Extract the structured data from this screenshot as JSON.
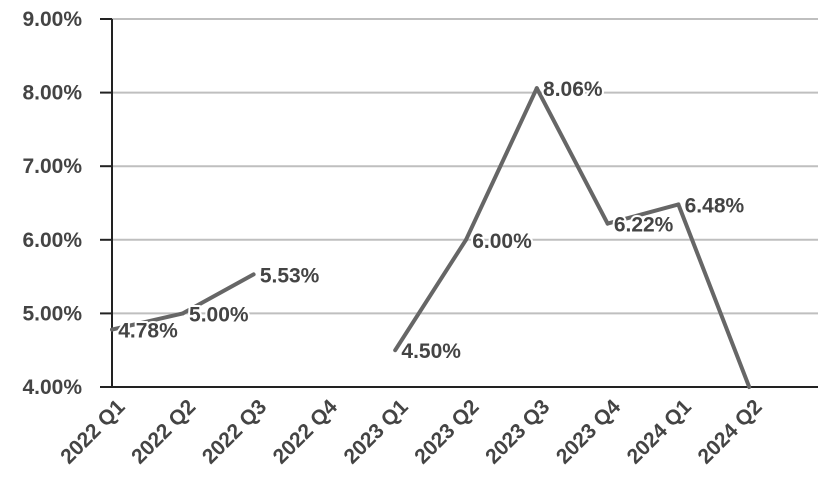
{
  "chart_data": {
    "type": "line",
    "title": "",
    "xlabel": "",
    "ylabel": "",
    "categories": [
      "2022 Q1",
      "2022 Q2",
      "2022 Q3",
      "2022 Q4",
      "2023 Q1",
      "2023 Q2",
      "2023 Q3",
      "2023 Q4",
      "2024 Q1",
      "2024 Q2"
    ],
    "ylim": [
      4.0,
      9.0
    ],
    "yticks": [
      "4.00%",
      "5.00%",
      "6.00%",
      "7.00%",
      "8.00%",
      "9.00%"
    ],
    "grid": true,
    "legend": "none",
    "series": [
      {
        "values": [
          4.78,
          5.0,
          5.53,
          null,
          4.5,
          6.0,
          8.06,
          6.22,
          6.48,
          4.0
        ],
        "labels": [
          "4.78%",
          "5.00%",
          "5.53%",
          "",
          "4.50%",
          "6.00%",
          "8.06%",
          "6.22%",
          "6.48%",
          ""
        ],
        "color": "#666666"
      }
    ],
    "colors": {
      "line": "#666666",
      "grid": "#bfbfbf",
      "axis": "#222222",
      "text": "#444444"
    }
  }
}
